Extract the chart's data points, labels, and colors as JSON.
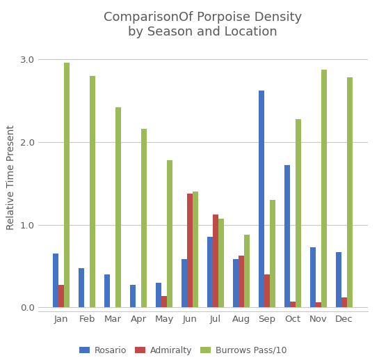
{
  "title": "ComparisonOf Porpoise Density\nby Season and Location",
  "ylabel": "Relative Time Present",
  "months": [
    "Jan",
    "Feb",
    "Mar",
    "Apr",
    "May",
    "Jun",
    "Jul",
    "Aug",
    "Sep",
    "Oct",
    "Nov",
    "Dec"
  ],
  "rosario": [
    0.65,
    0.47,
    0.4,
    0.27,
    0.3,
    0.58,
    0.85,
    0.58,
    2.62,
    1.72,
    0.73,
    0.67
  ],
  "admiralty": [
    0.27,
    0.0,
    0.0,
    0.0,
    0.14,
    1.38,
    1.12,
    0.63,
    0.4,
    0.07,
    0.06,
    0.12
  ],
  "burrows": [
    2.96,
    2.8,
    2.42,
    2.16,
    1.78,
    1.4,
    1.07,
    0.88,
    1.3,
    2.28,
    2.88,
    2.78
  ],
  "rosario_color": "#4472C4",
  "admiralty_color": "#BE4B48",
  "burrows_color": "#9BBB59",
  "ylim": [
    -0.05,
    3.2
  ],
  "yticks": [
    0.0,
    1.0,
    2.0,
    3.0
  ],
  "bar_width": 0.22,
  "title_fontsize": 13,
  "legend_labels": [
    "Rosario",
    "Admiralty",
    "Burrows Pass/10"
  ],
  "background_color": "#FFFFFF",
  "grid_color": "#C8C8C8",
  "tick_color": "#595959",
  "label_color": "#595959"
}
